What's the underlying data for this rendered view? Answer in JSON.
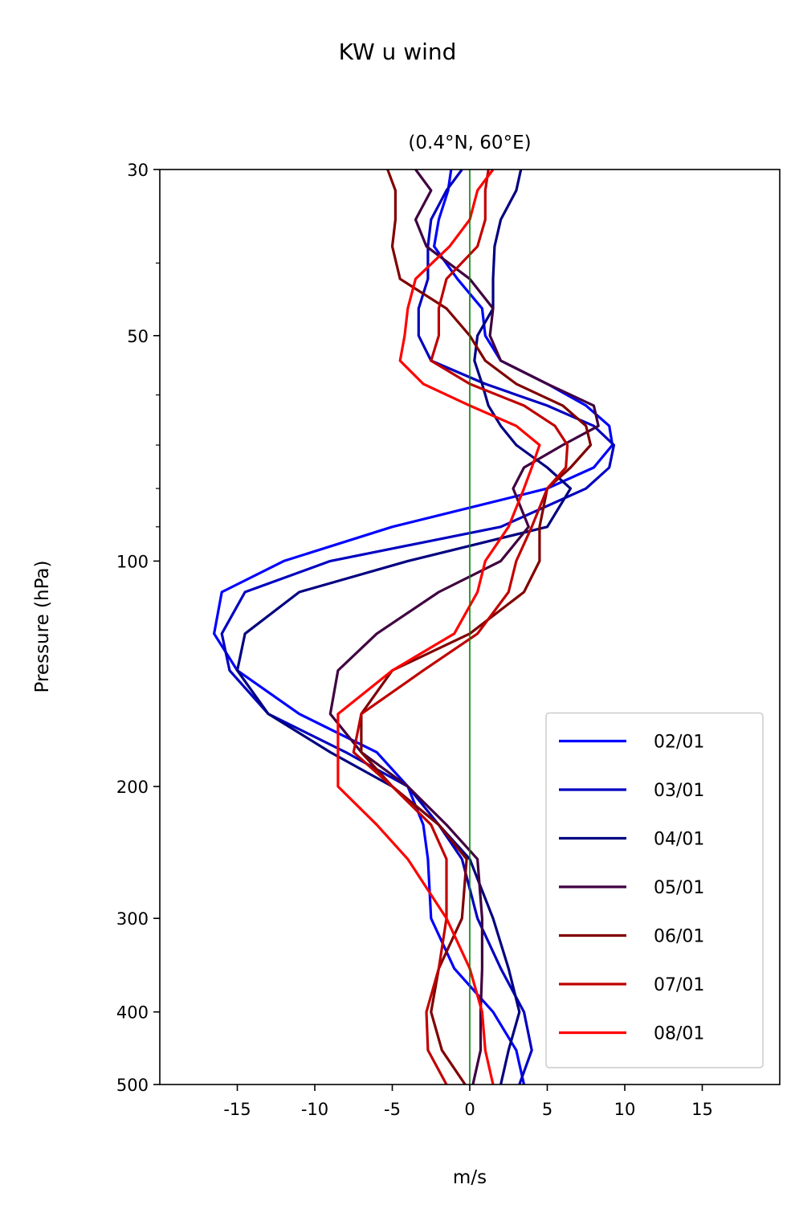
{
  "chart_data": {
    "type": "line",
    "title": "KW u wind",
    "subtitle": "(0.4°N, 60°E)",
    "xlabel": "m/s",
    "ylabel": "Pressure (hPa)",
    "xlim": [
      -20,
      20
    ],
    "ylim": [
      30,
      500
    ],
    "y_scale": "log",
    "y_inverted": true,
    "xticks": [
      -15,
      -10,
      -5,
      0,
      5,
      10,
      15
    ],
    "xtick_labels": [
      "-15",
      "-10",
      "-5",
      "0",
      "5",
      "10",
      "15"
    ],
    "yticks": [
      30,
      50,
      100,
      200,
      300,
      400,
      500
    ],
    "ytick_labels": [
      "30",
      "50",
      "100",
      "200",
      "300",
      "400",
      "500"
    ],
    "y_minor_ticks": [
      40,
      60,
      70,
      80,
      90
    ],
    "grid": false,
    "legend_position": "lower-right",
    "zero_line_color": "#008000",
    "pressure_levels": [
      30,
      32,
      35,
      38,
      42,
      46,
      50,
      54,
      58,
      62,
      66,
      70,
      75,
      80,
      90,
      100,
      110,
      125,
      140,
      160,
      180,
      200,
      225,
      250,
      300,
      350,
      400,
      450,
      500
    ],
    "series": [
      {
        "name": "02/01",
        "color": "#0000ff",
        "values": [
          -1.2,
          -1.4,
          -2.0,
          -2.3,
          -0.8,
          0.8,
          1.0,
          2.0,
          5.0,
          7.5,
          9.0,
          9.2,
          8.0,
          5.0,
          -5.0,
          -12.0,
          -16.0,
          -16.5,
          -15.0,
          -11.0,
          -6.0,
          -4.0,
          -3.0,
          -2.7,
          -2.5,
          -1.0,
          1.5,
          3.0,
          3.5
        ]
      },
      {
        "name": "03/01",
        "color": "#0000c0",
        "values": [
          -0.5,
          -1.5,
          -2.5,
          -2.7,
          -2.7,
          -3.3,
          -3.3,
          -2.5,
          1.0,
          5.0,
          8.0,
          9.3,
          9.0,
          7.5,
          2.0,
          -9.0,
          -14.5,
          -16.0,
          -15.5,
          -13.0,
          -8.0,
          -4.0,
          -2.0,
          -0.5,
          0.5,
          2.0,
          3.5,
          4.0,
          3.2
        ]
      },
      {
        "name": "04/01",
        "color": "#000080",
        "values": [
          3.3,
          3.0,
          2.0,
          1.6,
          1.5,
          1.5,
          0.5,
          0.3,
          0.8,
          1.2,
          2.0,
          3.0,
          5.0,
          6.5,
          5.0,
          -4.0,
          -11.0,
          -14.5,
          -15.0,
          -13.0,
          -9.0,
          -5.0,
          -2.0,
          0.0,
          1.5,
          2.5,
          3.2,
          2.5,
          2.0
        ]
      },
      {
        "name": "05/01",
        "color": "#400040",
        "values": [
          -3.5,
          -2.5,
          -3.5,
          -2.8,
          0.0,
          1.5,
          1.3,
          2.0,
          5.0,
          8.0,
          8.3,
          6.0,
          3.5,
          2.8,
          3.8,
          2.0,
          -2.0,
          -6.0,
          -8.5,
          -9.0,
          -7.0,
          -4.0,
          -1.5,
          0.5,
          0.8,
          0.8,
          0.7,
          0.7,
          0.2
        ]
      },
      {
        "name": "06/01",
        "color": "#800000",
        "values": [
          -5.3,
          -4.8,
          -4.8,
          -5.0,
          -4.5,
          -1.5,
          0.0,
          1.0,
          3.0,
          6.0,
          7.5,
          7.8,
          6.5,
          5.0,
          4.5,
          4.5,
          3.5,
          0.0,
          -5.0,
          -7.0,
          -7.0,
          -5.0,
          -2.0,
          -0.2,
          -0.5,
          -2.0,
          -2.5,
          -1.8,
          -0.3
        ]
      },
      {
        "name": "07/01",
        "color": "#c00000",
        "values": [
          1.2,
          1.0,
          1.0,
          0.5,
          -1.5,
          -2.0,
          -2.0,
          -2.5,
          0.0,
          3.5,
          5.5,
          6.3,
          6.2,
          5.0,
          4.0,
          3.0,
          2.5,
          0.5,
          -3.0,
          -7.0,
          -7.5,
          -5.0,
          -2.5,
          -1.5,
          -1.5,
          -2.0,
          -2.8,
          -2.7,
          -1.5
        ]
      },
      {
        "name": "08/01",
        "color": "#ff0000",
        "values": [
          1.5,
          0.5,
          0.0,
          -1.3,
          -3.5,
          -4.0,
          -4.2,
          -4.5,
          -3.0,
          0.0,
          3.0,
          4.5,
          4.0,
          3.5,
          2.5,
          1.0,
          0.5,
          -1.0,
          -5.0,
          -8.5,
          -8.5,
          -8.5,
          -6.0,
          -4.0,
          -1.5,
          0.0,
          0.8,
          1.0,
          1.5
        ]
      }
    ]
  }
}
